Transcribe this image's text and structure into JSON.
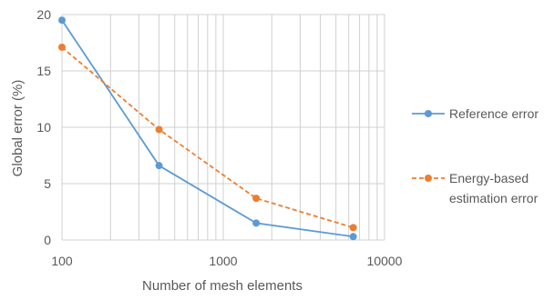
{
  "chart_data": {
    "type": "line",
    "title": "",
    "xlabel": "Number of mesh elements",
    "ylabel": "Global error (%)",
    "xscale": "log",
    "xlim": [
      100,
      10000
    ],
    "ylim": [
      0,
      20
    ],
    "x_ticks": [
      100,
      1000,
      10000
    ],
    "x_tick_labels": [
      "100",
      "1000",
      "10000"
    ],
    "y_ticks": [
      0,
      5,
      10,
      15,
      20
    ],
    "y_tick_labels": [
      "0",
      "5",
      "10",
      "15",
      "20"
    ],
    "grid": true,
    "legend_position": "right",
    "series": [
      {
        "name": "Reference error",
        "color": "#5b9bd5",
        "line_style": "solid",
        "x": [
          100,
          400,
          1600,
          6400
        ],
        "y": [
          19.5,
          6.6,
          1.5,
          0.3
        ]
      },
      {
        "name": "Energy-based estimation error",
        "legend_lines": [
          "Energy-based",
          "estimation error"
        ],
        "color": "#ed7d31",
        "line_style": "dashed",
        "x": [
          100,
          400,
          1600,
          6400
        ],
        "y": [
          17.1,
          9.8,
          3.7,
          1.1
        ]
      }
    ]
  }
}
